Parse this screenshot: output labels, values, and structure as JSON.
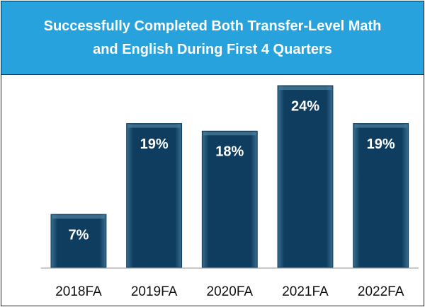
{
  "chart_data": {
    "type": "bar",
    "title": "Successfully Completed Both Transfer-Level Math and English During First 4 Quarters",
    "categories": [
      "2018FA",
      "2019FA",
      "2020FA",
      "2021FA",
      "2022FA"
    ],
    "values": [
      7,
      19,
      18,
      24,
      19
    ],
    "value_labels": [
      "7%",
      "19%",
      "18%",
      "24%",
      "19%"
    ],
    "color": "#0d3a5c",
    "ylim": [
      0,
      25.5
    ]
  }
}
